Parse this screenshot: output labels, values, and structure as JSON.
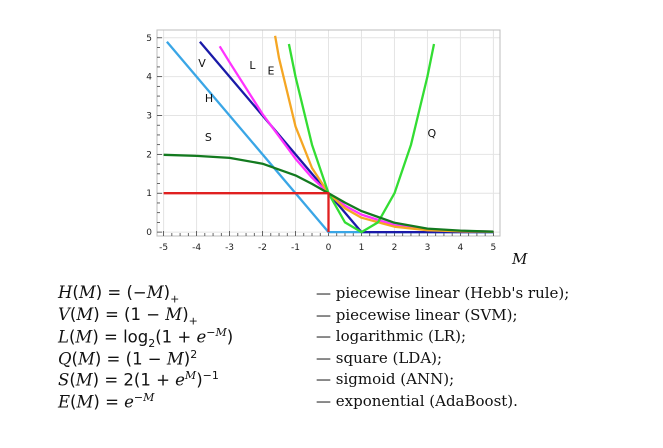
{
  "chart_data": {
    "type": "line",
    "xlabel": "M",
    "xlim": [
      -5.2,
      5.2
    ],
    "ylim": [
      -0.1,
      5.2
    ],
    "x_ticks": [
      -5,
      -4,
      -3,
      -2,
      -1,
      0,
      1,
      2,
      3,
      4,
      5
    ],
    "y_ticks": [
      0,
      1,
      2,
      3,
      4,
      5
    ],
    "grid": true,
    "series": [
      {
        "name": "H",
        "color": "#3aa6e6",
        "x": [
          -4.9,
          0,
          5
        ],
        "y": [
          4.9,
          0,
          0
        ]
      },
      {
        "name": "V",
        "color": "#1a1aa8",
        "x": [
          -3.9,
          1,
          5
        ],
        "y": [
          4.9,
          0,
          0
        ]
      },
      {
        "name": "L",
        "color": "#ff33ff",
        "x": [
          -3.3,
          -3,
          -2,
          -1,
          -0.5,
          0,
          0.5,
          1,
          2,
          3,
          4,
          5
        ],
        "y": [
          4.78,
          4.37,
          3.04,
          1.89,
          1.4,
          1.0,
          0.68,
          0.45,
          0.18,
          0.07,
          0.03,
          0.01
        ]
      },
      {
        "name": "E",
        "color": "#f5a623",
        "x": [
          -1.62,
          -1.5,
          -1,
          -0.5,
          0,
          0.5,
          1,
          2,
          3,
          4,
          5
        ],
        "y": [
          5.05,
          4.48,
          2.72,
          1.65,
          1.0,
          0.61,
          0.37,
          0.14,
          0.05,
          0.02,
          0.01
        ]
      },
      {
        "name": "Q",
        "color": "#33dd33",
        "x": [
          -1.2,
          -1,
          -0.5,
          0,
          0.5,
          1,
          1.5,
          2,
          2.5,
          3,
          3.2
        ],
        "y": [
          4.84,
          4.0,
          2.25,
          1.0,
          0.25,
          0,
          0.25,
          1.0,
          2.25,
          4.0,
          4.84
        ]
      },
      {
        "name": "S",
        "color": "#137a1f",
        "x": [
          -5,
          -4,
          -3,
          -2,
          -1,
          -0.5,
          0,
          0.5,
          1,
          2,
          3,
          4,
          5
        ],
        "y": [
          1.99,
          1.96,
          1.91,
          1.76,
          1.46,
          1.24,
          1.0,
          0.76,
          0.54,
          0.24,
          0.09,
          0.04,
          0.01
        ]
      },
      {
        "name": "",
        "color": "#e02020",
        "x": [
          -5,
          0,
          0
        ],
        "y": [
          1,
          1,
          0
        ]
      }
    ],
    "curve_labels": [
      {
        "text": "V",
        "x": -3.95,
        "y": 4.25
      },
      {
        "text": "L",
        "x": -2.4,
        "y": 4.2
      },
      {
        "text": "E",
        "x": -1.85,
        "y": 4.05
      },
      {
        "text": "H",
        "x": -3.75,
        "y": 3.35
      },
      {
        "text": "S",
        "x": -3.75,
        "y": 2.35
      },
      {
        "text": "Q",
        "x": 3.0,
        "y": 2.45
      }
    ]
  },
  "legend": [
    {
      "text": "— piecewise linear (Hebb's rule);"
    },
    {
      "text": "— piecewise linear (SVM);"
    },
    {
      "text": "— logarithmic (LR);"
    },
    {
      "text": "— square (LDA);"
    },
    {
      "text": "— sigmoid (ANN);"
    },
    {
      "text": "— exponential (AdaBoost)."
    }
  ]
}
